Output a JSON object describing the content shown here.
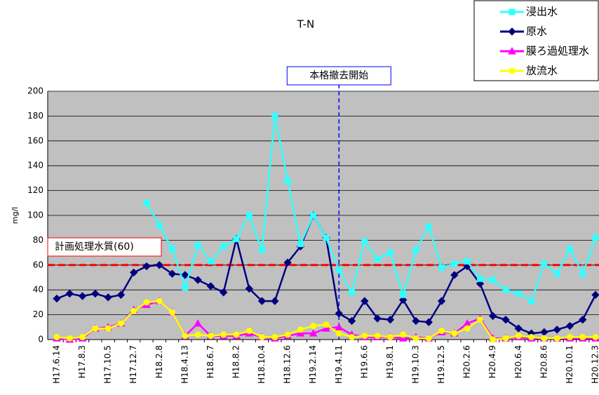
{
  "chart_data": {
    "type": "line",
    "title": "T-N",
    "y_label": "mg/l",
    "categories": [
      "H17.6.14",
      null,
      "H17.8.3",
      null,
      "H17.10.5",
      null,
      "H17.12.7",
      null,
      "H18.2.8",
      null,
      "H18.4.13",
      null,
      "H18.6.7",
      null,
      "H18.8.2",
      null,
      "H18.10.4",
      null,
      "H18.12.6",
      null,
      "H19.2.14",
      null,
      "H19.4.11",
      null,
      "H19.6.6",
      null,
      "H19.8.1",
      null,
      "H19.10.3",
      null,
      "H19.12.5",
      null,
      "H20.2.6",
      null,
      "H20.4.9",
      null,
      "H20.6.4",
      null,
      "H20.8.6",
      null,
      "H20.10.1",
      null,
      "H20.12.3"
    ],
    "series": [
      {
        "name": "浸出水",
        "color": "#33ffff",
        "marker": "square",
        "values": [
          null,
          null,
          null,
          null,
          null,
          null,
          null,
          110,
          92,
          73,
          42,
          76,
          63,
          75,
          81,
          100,
          72,
          180,
          128,
          77,
          100,
          82,
          56,
          38,
          79,
          65,
          70,
          36,
          72,
          91,
          58,
          61,
          63,
          49,
          48,
          40,
          37,
          31,
          61,
          53,
          73,
          53,
          82
        ]
      },
      {
        "name": "原水",
        "color": "#000080",
        "marker": "diamond",
        "values": [
          33,
          37,
          35,
          37,
          34,
          36,
          54,
          59,
          60,
          53,
          52,
          48,
          43,
          38,
          81,
          41,
          31,
          31,
          62,
          75,
          100,
          82,
          21,
          15,
          31,
          17,
          16,
          32,
          15,
          14,
          31,
          52,
          59,
          45,
          19,
          16,
          9,
          5,
          6,
          8,
          11,
          16,
          36
        ]
      },
      {
        "name": "膜ろ過処理水",
        "color": "#ff00ff",
        "marker": "triangle",
        "values": [
          1,
          0,
          1,
          9,
          10,
          13,
          24,
          28,
          31,
          22,
          3,
          13,
          3,
          3,
          3,
          5,
          2,
          1,
          3,
          5,
          5,
          9,
          10,
          4,
          2,
          2,
          2,
          1,
          2,
          1,
          6,
          5,
          13,
          17,
          1,
          1,
          2,
          1,
          1,
          1,
          1,
          1,
          1
        ]
      },
      {
        "name": "放流水",
        "color": "#ffff00",
        "marker": "circle",
        "values": [
          2,
          1,
          2,
          9,
          9,
          13,
          23,
          30,
          31,
          22,
          3,
          4,
          3,
          4,
          4,
          7,
          2,
          2,
          4,
          8,
          11,
          12,
          5,
          2,
          3,
          3,
          2,
          4,
          1,
          1,
          7,
          5,
          9,
          16,
          0,
          1,
          3,
          2,
          1,
          1,
          2,
          2,
          2
        ]
      }
    ],
    "ylim": [
      0,
      200
    ],
    "yticks": [
      0,
      20,
      40,
      60,
      80,
      100,
      120,
      140,
      160,
      180,
      200
    ],
    "grid": true,
    "reference_line": {
      "value": 60,
      "label": "計画処理水質(60)",
      "color": "#ff0000"
    },
    "event_line": {
      "category": "H19.4.11",
      "label": "本格撤去開始",
      "color": "#0000ff"
    },
    "legend": "top-right"
  }
}
